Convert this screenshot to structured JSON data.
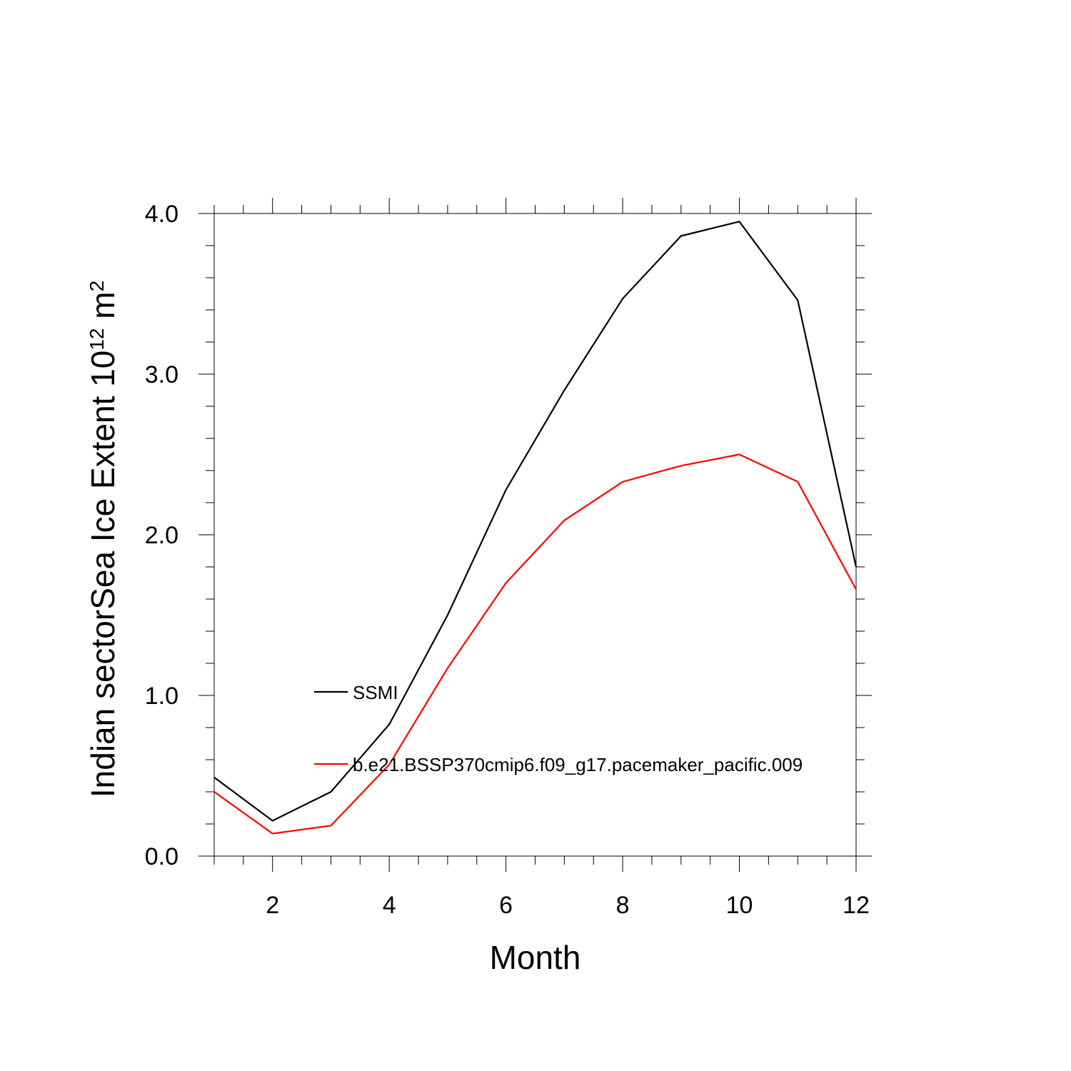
{
  "chart_data": {
    "type": "line",
    "xlabel": "Month",
    "ylabel": {
      "prefix": "Indian sectorSea Ice Extent 10",
      "exponent": "12",
      "unit_base": " m",
      "unit_exponent": "2"
    },
    "xlim": [
      1,
      12
    ],
    "ylim": [
      0,
      4
    ],
    "x_ticks": [
      2,
      4,
      6,
      8,
      10,
      12
    ],
    "x_tick_labels": [
      "2",
      "4",
      "6",
      "8",
      "10",
      "12"
    ],
    "y_ticks": [
      0,
      1,
      2,
      3,
      4
    ],
    "y_tick_labels": [
      "0.0",
      "1.0",
      "2.0",
      "3.0",
      "4.0"
    ],
    "grid": false,
    "legend_placement": "center-left inside plot",
    "x": [
      1,
      2,
      3,
      4,
      5,
      6,
      7,
      8,
      9,
      10,
      11,
      12
    ],
    "series": [
      {
        "name": "SSMI",
        "color": "#000000",
        "values": [
          0.49,
          0.22,
          0.4,
          0.82,
          1.5,
          2.28,
          2.9,
          3.47,
          3.86,
          3.95,
          3.46,
          1.8
        ]
      },
      {
        "name": "b.e21.BSSP370cmip6.f09_g17.pacemaker_pacific.009",
        "color": "#ff0000",
        "values": [
          0.4,
          0.14,
          0.19,
          0.57,
          1.17,
          1.7,
          2.09,
          2.33,
          2.43,
          2.5,
          2.33,
          1.66
        ]
      }
    ]
  }
}
